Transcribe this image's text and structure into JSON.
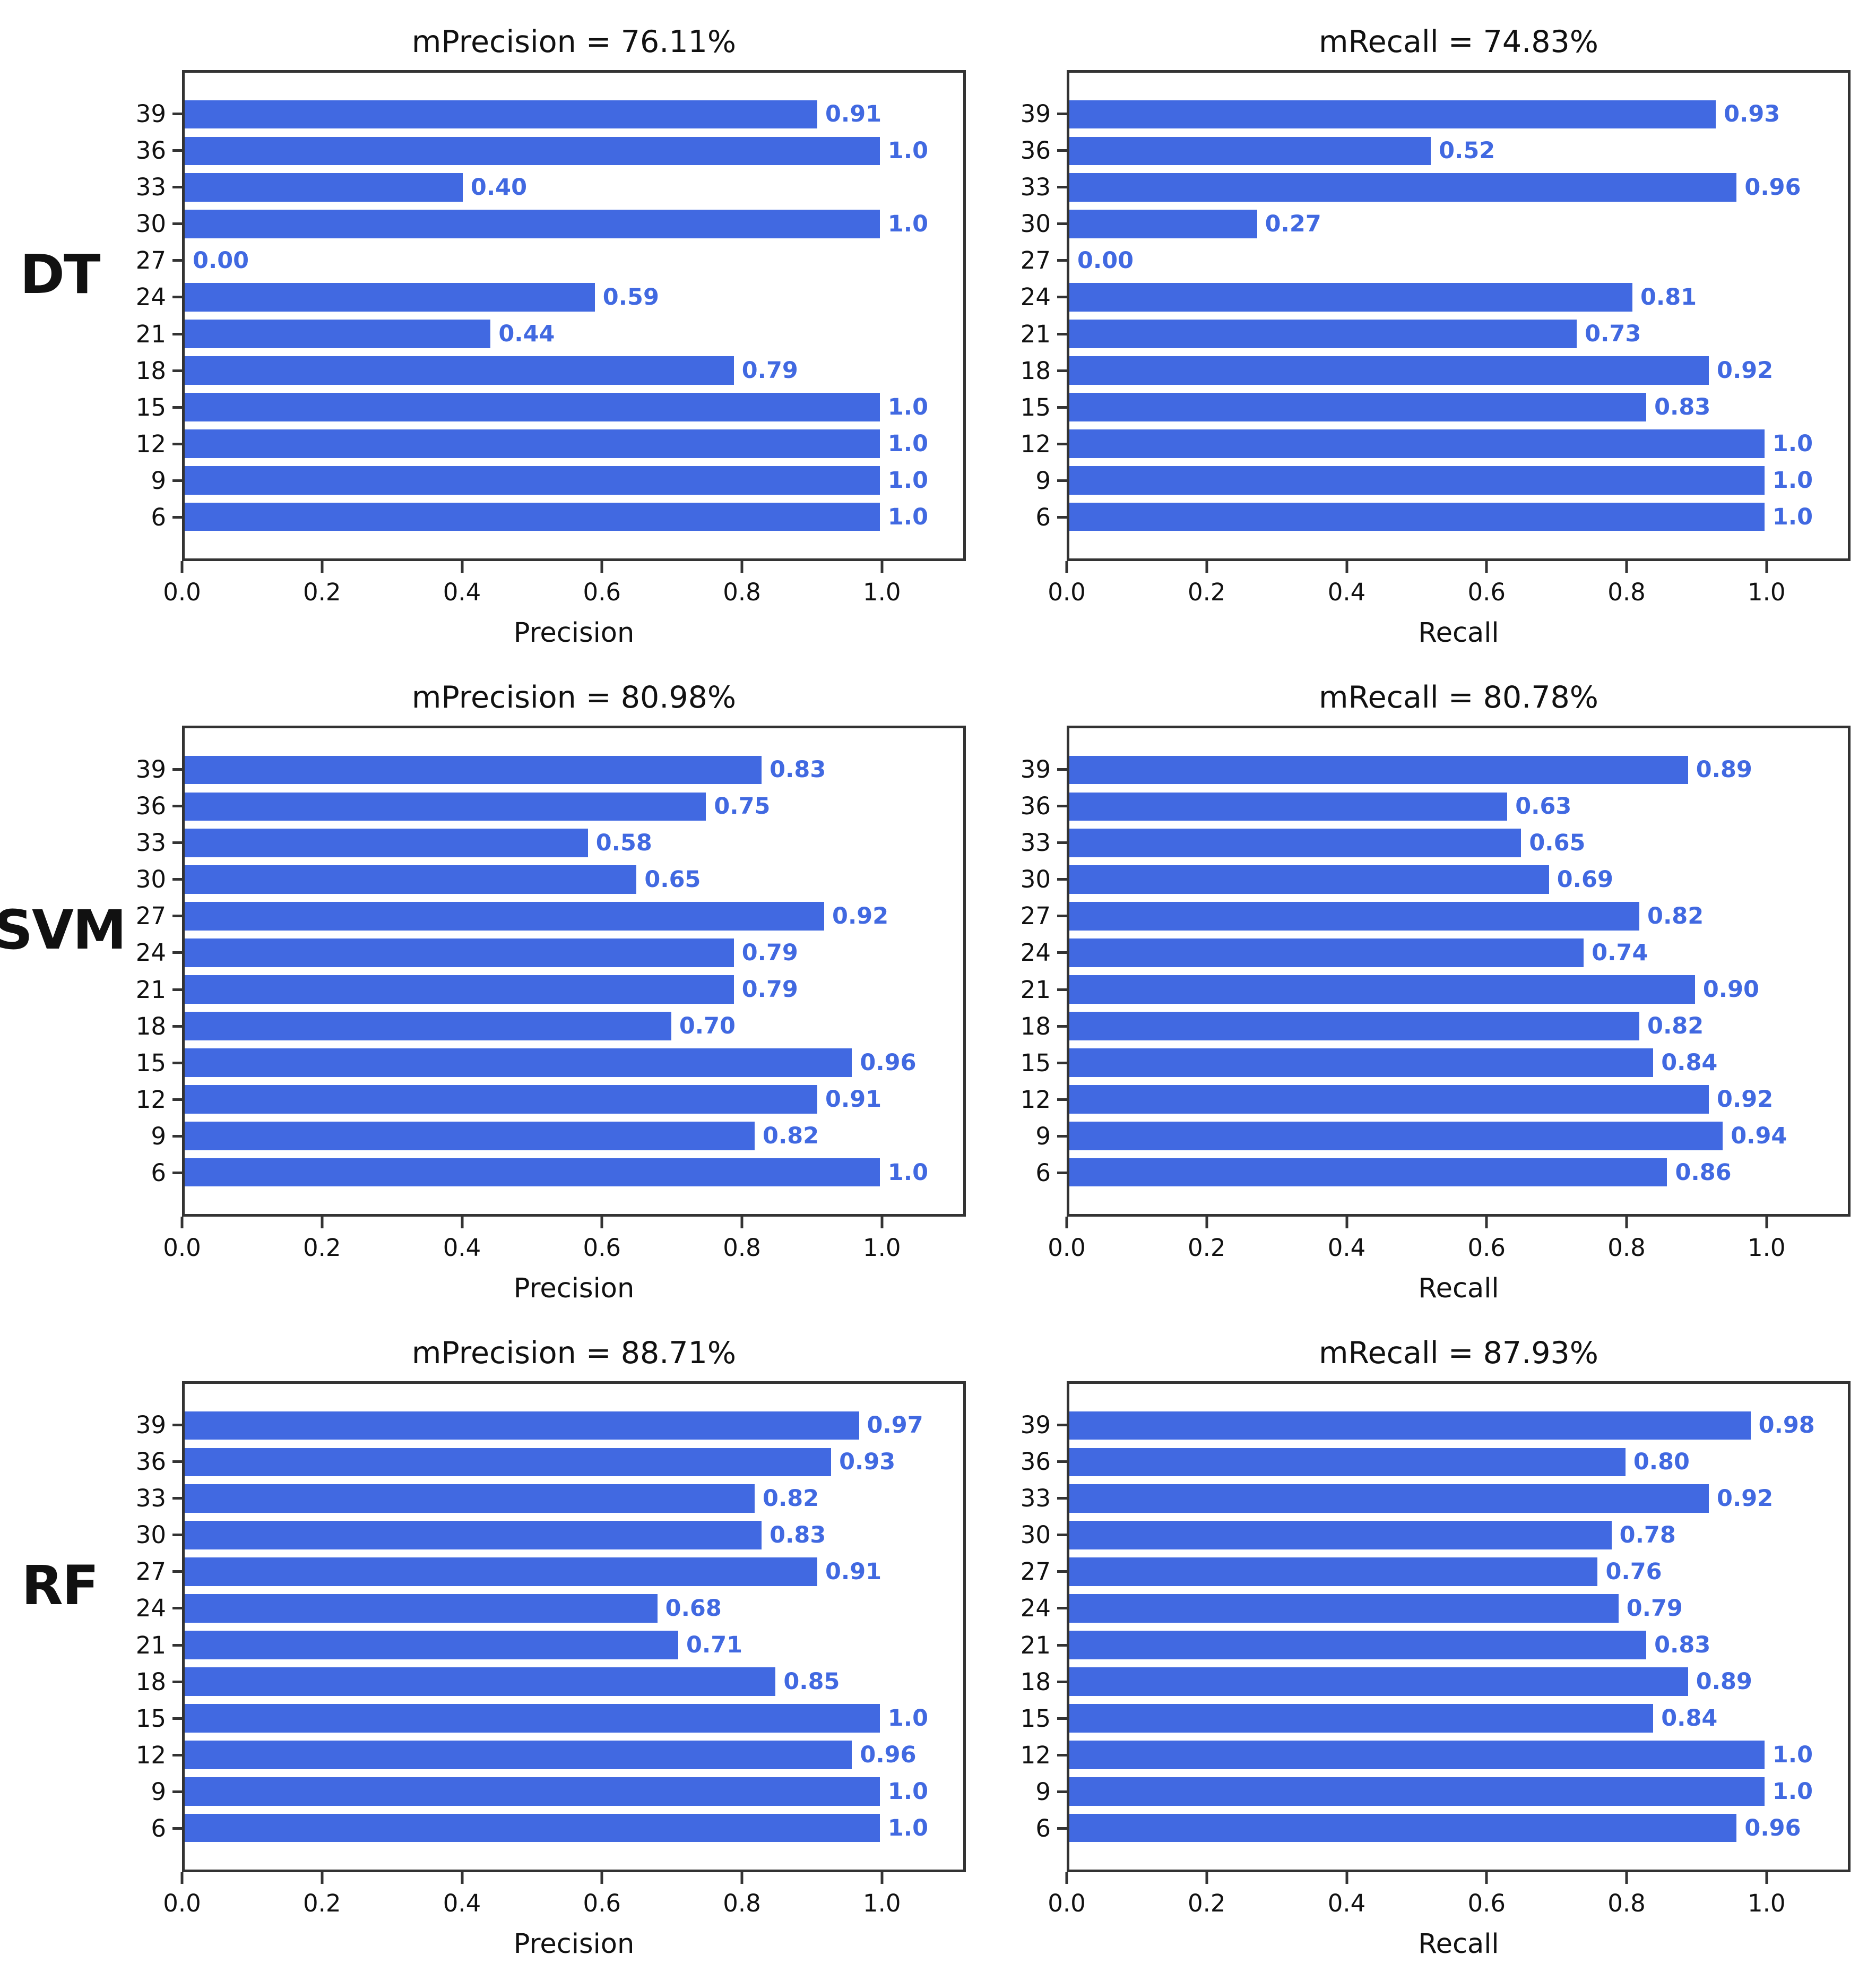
{
  "figure": {
    "bar_color": "#4169E1",
    "value_label_color": "#4169E1",
    "x_axis_max": 1.12
  },
  "row_labels": [
    "DT",
    "SVM",
    "RF"
  ],
  "chart_data": [
    {
      "type": "bar",
      "orientation": "horizontal",
      "model": "DT",
      "title": "mPrecision = 76.11%",
      "xlabel": "Precision",
      "categories": [
        "39",
        "36",
        "33",
        "30",
        "27",
        "24",
        "21",
        "18",
        "15",
        "12",
        "9",
        "6"
      ],
      "values": [
        0.91,
        1.0,
        0.4,
        1.0,
        0.0,
        0.59,
        0.44,
        0.79,
        1.0,
        1.0,
        1.0,
        1.0
      ],
      "value_labels": [
        "0.91",
        "1.0",
        "0.40",
        "1.0",
        "0.00",
        "0.59",
        "0.44",
        "0.79",
        "1.0",
        "1.0",
        "1.0",
        "1.0"
      ],
      "xlim": [
        0,
        1.12
      ],
      "xticks": [
        0,
        0.2,
        0.4,
        0.6,
        0.8,
        1.0
      ],
      "xtick_labels": [
        "0.0",
        "0.2",
        "0.4",
        "0.6",
        "0.8",
        "1.0"
      ],
      "grid": false
    },
    {
      "type": "bar",
      "orientation": "horizontal",
      "model": "DT",
      "title": "mRecall = 74.83%",
      "xlabel": "Recall",
      "categories": [
        "39",
        "36",
        "33",
        "30",
        "27",
        "24",
        "21",
        "18",
        "15",
        "12",
        "9",
        "6"
      ],
      "values": [
        0.93,
        0.52,
        0.96,
        0.27,
        0.0,
        0.81,
        0.73,
        0.92,
        0.83,
        1.0,
        1.0,
        1.0
      ],
      "value_labels": [
        "0.93",
        "0.52",
        "0.96",
        "0.27",
        "0.00",
        "0.81",
        "0.73",
        "0.92",
        "0.83",
        "1.0",
        "1.0",
        "1.0"
      ],
      "xlim": [
        0,
        1.12
      ],
      "xticks": [
        0,
        0.2,
        0.4,
        0.6,
        0.8,
        1.0
      ],
      "xtick_labels": [
        "0.0",
        "0.2",
        "0.4",
        "0.6",
        "0.8",
        "1.0"
      ],
      "grid": false
    },
    {
      "type": "bar",
      "orientation": "horizontal",
      "model": "SVM",
      "title": "mPrecision = 80.98%",
      "xlabel": "Precision",
      "categories": [
        "39",
        "36",
        "33",
        "30",
        "27",
        "24",
        "21",
        "18",
        "15",
        "12",
        "9",
        "6"
      ],
      "values": [
        0.83,
        0.75,
        0.58,
        0.65,
        0.92,
        0.79,
        0.79,
        0.7,
        0.96,
        0.91,
        0.82,
        1.0
      ],
      "value_labels": [
        "0.83",
        "0.75",
        "0.58",
        "0.65",
        "0.92",
        "0.79",
        "0.79",
        "0.70",
        "0.96",
        "0.91",
        "0.82",
        "1.0"
      ],
      "xlim": [
        0,
        1.12
      ],
      "xticks": [
        0,
        0.2,
        0.4,
        0.6,
        0.8,
        1.0
      ],
      "xtick_labels": [
        "0.0",
        "0.2",
        "0.4",
        "0.6",
        "0.8",
        "1.0"
      ],
      "grid": false
    },
    {
      "type": "bar",
      "orientation": "horizontal",
      "model": "SVM",
      "title": "mRecall = 80.78%",
      "xlabel": "Recall",
      "categories": [
        "39",
        "36",
        "33",
        "30",
        "27",
        "24",
        "21",
        "18",
        "15",
        "12",
        "9",
        "6"
      ],
      "values": [
        0.89,
        0.63,
        0.65,
        0.69,
        0.82,
        0.74,
        0.9,
        0.82,
        0.84,
        0.92,
        0.94,
        0.86
      ],
      "value_labels": [
        "0.89",
        "0.63",
        "0.65",
        "0.69",
        "0.82",
        "0.74",
        "0.90",
        "0.82",
        "0.84",
        "0.92",
        "0.94",
        "0.86"
      ],
      "xlim": [
        0,
        1.12
      ],
      "xticks": [
        0,
        0.2,
        0.4,
        0.6,
        0.8,
        1.0
      ],
      "xtick_labels": [
        "0.0",
        "0.2",
        "0.4",
        "0.6",
        "0.8",
        "1.0"
      ],
      "grid": false
    },
    {
      "type": "bar",
      "orientation": "horizontal",
      "model": "RF",
      "title": "mPrecision = 88.71%",
      "xlabel": "Precision",
      "categories": [
        "39",
        "36",
        "33",
        "30",
        "27",
        "24",
        "21",
        "18",
        "15",
        "12",
        "9",
        "6"
      ],
      "values": [
        0.97,
        0.93,
        0.82,
        0.83,
        0.91,
        0.68,
        0.71,
        0.85,
        1.0,
        0.96,
        1.0,
        1.0
      ],
      "value_labels": [
        "0.97",
        "0.93",
        "0.82",
        "0.83",
        "0.91",
        "0.68",
        "0.71",
        "0.85",
        "1.0",
        "0.96",
        "1.0",
        "1.0"
      ],
      "xlim": [
        0,
        1.12
      ],
      "xticks": [
        0,
        0.2,
        0.4,
        0.6,
        0.8,
        1.0
      ],
      "xtick_labels": [
        "0.0",
        "0.2",
        "0.4",
        "0.6",
        "0.8",
        "1.0"
      ],
      "grid": false
    },
    {
      "type": "bar",
      "orientation": "horizontal",
      "model": "RF",
      "title": "mRecall = 87.93%",
      "xlabel": "Recall",
      "categories": [
        "39",
        "36",
        "33",
        "30",
        "27",
        "24",
        "21",
        "18",
        "15",
        "12",
        "9",
        "6"
      ],
      "values": [
        0.98,
        0.8,
        0.92,
        0.78,
        0.76,
        0.79,
        0.83,
        0.89,
        0.84,
        1.0,
        1.0,
        0.96
      ],
      "value_labels": [
        "0.98",
        "0.80",
        "0.92",
        "0.78",
        "0.76",
        "0.79",
        "0.83",
        "0.89",
        "0.84",
        "1.0",
        "1.0",
        "0.96"
      ],
      "xlim": [
        0,
        1.12
      ],
      "xticks": [
        0,
        0.2,
        0.4,
        0.6,
        0.8,
        1.0
      ],
      "xtick_labels": [
        "0.0",
        "0.2",
        "0.4",
        "0.6",
        "0.8",
        "1.0"
      ],
      "grid": false
    }
  ]
}
